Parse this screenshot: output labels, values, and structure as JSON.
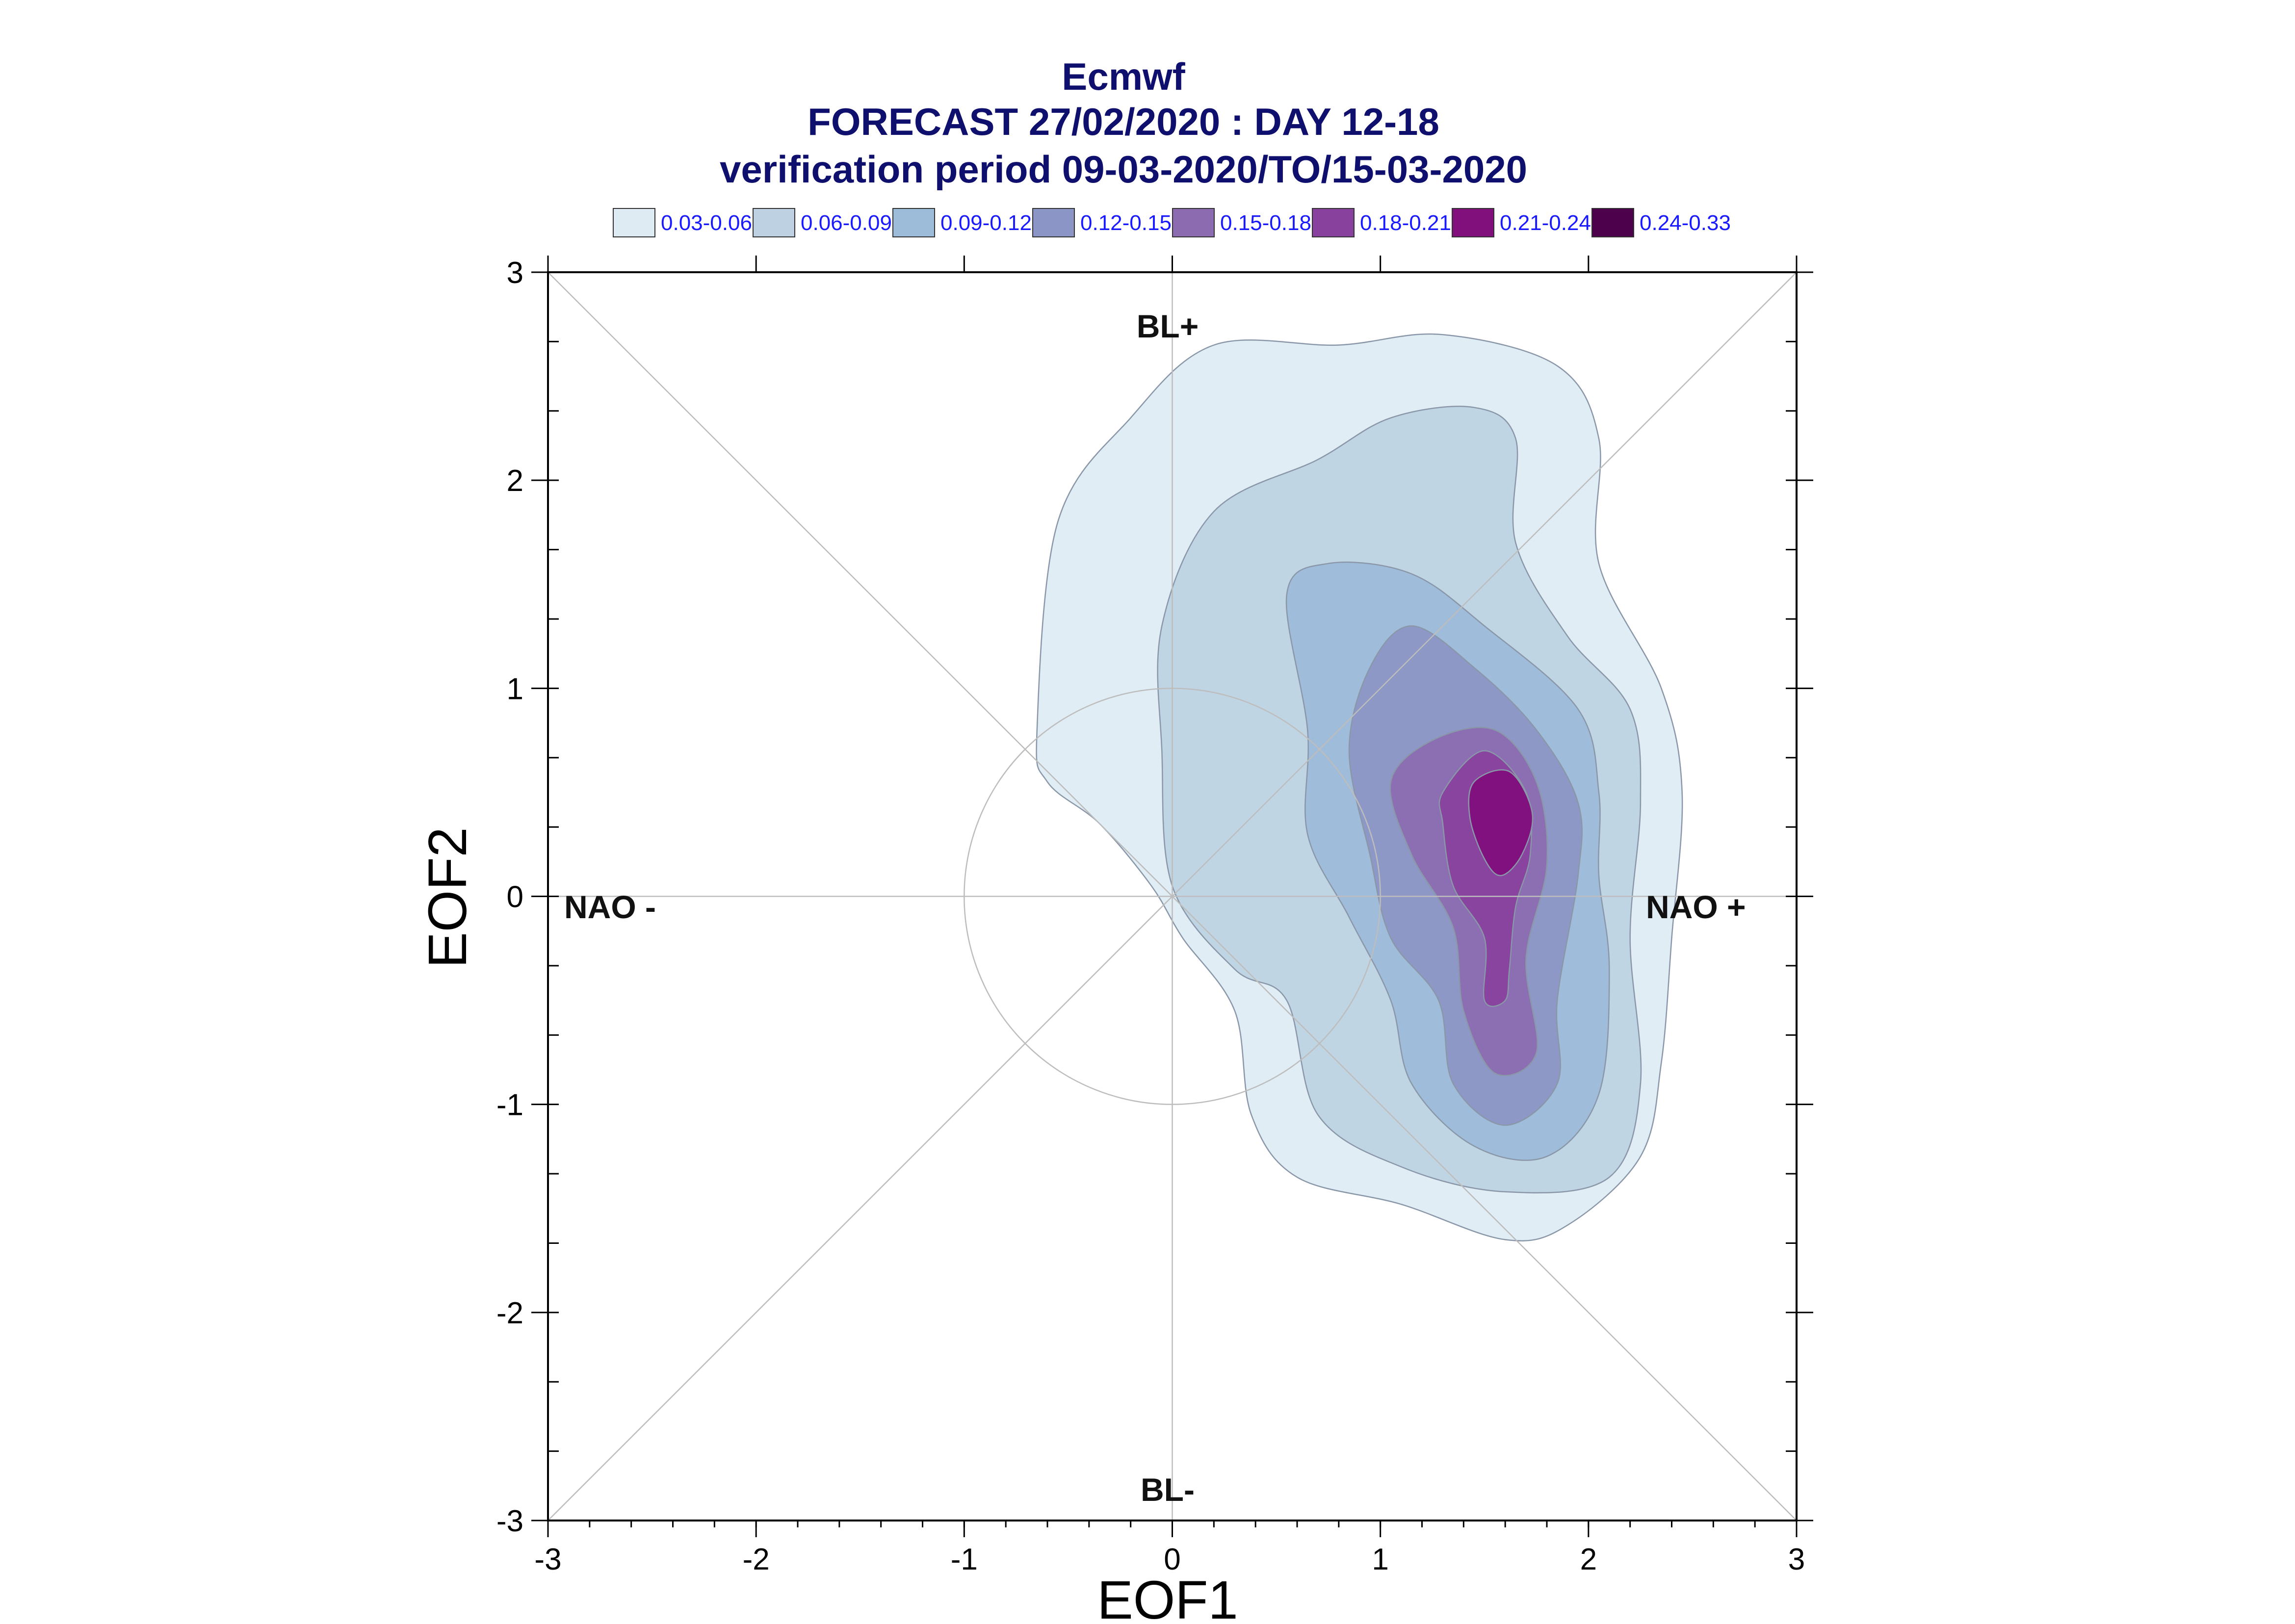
{
  "chart_data": {
    "type": "contour",
    "title_lines": [
      "Ecmwf",
      "FORECAST 27/02/2020 : DAY 12-18",
      "verification period 09-03-2020/TO/15-03-2020"
    ],
    "xlabel": "EOF1",
    "ylabel": "EOF2",
    "xlim": [
      -3,
      3
    ],
    "ylim": [
      -3,
      3
    ],
    "xticks": [
      "-3",
      "-2",
      "-1",
      "0",
      "1",
      "2",
      "3"
    ],
    "yticks": [
      "3",
      "2",
      "1",
      "0",
      "-1",
      "-2",
      "-3"
    ],
    "regime_labels": {
      "top": "BL+",
      "bottom": "BL-",
      "left": "NAO -",
      "right": "NAO +"
    },
    "reference_circle_radius": 1,
    "legend": [
      {
        "label": "0.03-0.06",
        "color": "#deebf3"
      },
      {
        "label": "0.06-0.09",
        "color": "#bdd1e2"
      },
      {
        "label": "0.09-0.12",
        "color": "#9dbcd9"
      },
      {
        "label": "0.12-0.15",
        "color": "#8c96c6"
      },
      {
        "label": "0.15-0.18",
        "color": "#8c6bb1"
      },
      {
        "label": "0.18-0.21",
        "color": "#88419d"
      },
      {
        "label": "0.21-0.24",
        "color": "#810f7c"
      },
      {
        "label": "0.24-0.33",
        "color": "#4d004b"
      }
    ],
    "contours": [
      {
        "level": "0.03-0.06",
        "points": [
          [
            -0.65,
            0.8
          ],
          [
            -0.55,
            1.8
          ],
          [
            -0.2,
            2.3
          ],
          [
            0.2,
            2.65
          ],
          [
            0.8,
            2.65
          ],
          [
            1.3,
            2.7
          ],
          [
            1.85,
            2.55
          ],
          [
            2.05,
            2.2
          ],
          [
            2.05,
            1.6
          ],
          [
            2.35,
            1.0
          ],
          [
            2.45,
            0.5
          ],
          [
            2.4,
            -0.2
          ],
          [
            2.35,
            -0.8
          ],
          [
            2.25,
            -1.25
          ],
          [
            1.9,
            -1.58
          ],
          [
            1.6,
            -1.65
          ],
          [
            1.1,
            -1.48
          ],
          [
            0.6,
            -1.35
          ],
          [
            0.38,
            -1.05
          ],
          [
            0.3,
            -0.55
          ],
          [
            0.05,
            -0.2
          ],
          [
            -0.1,
            0.05
          ],
          [
            -0.35,
            0.35
          ],
          [
            -0.6,
            0.55
          ]
        ]
      },
      {
        "level": "0.06-0.09",
        "points": [
          [
            -0.05,
            1.3
          ],
          [
            0.2,
            1.85
          ],
          [
            0.7,
            2.1
          ],
          [
            1.05,
            2.3
          ],
          [
            1.45,
            2.35
          ],
          [
            1.65,
            2.2
          ],
          [
            1.65,
            1.7
          ],
          [
            1.9,
            1.25
          ],
          [
            2.2,
            0.9
          ],
          [
            2.25,
            0.45
          ],
          [
            2.2,
            -0.2
          ],
          [
            2.25,
            -0.9
          ],
          [
            2.1,
            -1.35
          ],
          [
            1.6,
            -1.42
          ],
          [
            1.1,
            -1.3
          ],
          [
            0.7,
            -1.05
          ],
          [
            0.55,
            -0.5
          ],
          [
            0.3,
            -0.35
          ],
          [
            0.0,
            0.05
          ],
          [
            -0.05,
            0.7
          ]
        ]
      },
      {
        "level": "0.09-0.12",
        "points": [
          [
            0.55,
            1.45
          ],
          [
            0.75,
            1.6
          ],
          [
            1.15,
            1.55
          ],
          [
            1.5,
            1.3
          ],
          [
            1.95,
            0.9
          ],
          [
            2.05,
            0.5
          ],
          [
            2.05,
            0.1
          ],
          [
            2.1,
            -0.35
          ],
          [
            2.05,
            -0.95
          ],
          [
            1.8,
            -1.25
          ],
          [
            1.45,
            -1.2
          ],
          [
            1.15,
            -0.9
          ],
          [
            1.05,
            -0.5
          ],
          [
            0.85,
            -0.1
          ],
          [
            0.65,
            0.3
          ],
          [
            0.65,
            0.8
          ]
        ]
      },
      {
        "level": "0.12-0.15",
        "points": [
          [
            0.95,
            1.1
          ],
          [
            1.15,
            1.3
          ],
          [
            1.45,
            1.1
          ],
          [
            1.75,
            0.8
          ],
          [
            1.95,
            0.45
          ],
          [
            1.95,
            0.1
          ],
          [
            1.85,
            -0.5
          ],
          [
            1.85,
            -0.9
          ],
          [
            1.6,
            -1.1
          ],
          [
            1.35,
            -0.9
          ],
          [
            1.28,
            -0.5
          ],
          [
            1.05,
            -0.2
          ],
          [
            0.95,
            0.2
          ],
          [
            0.85,
            0.7
          ]
        ]
      },
      {
        "level": "0.15-0.18",
        "points": [
          [
            1.05,
            0.55
          ],
          [
            1.25,
            0.75
          ],
          [
            1.55,
            0.8
          ],
          [
            1.75,
            0.55
          ],
          [
            1.8,
            0.15
          ],
          [
            1.7,
            -0.3
          ],
          [
            1.75,
            -0.75
          ],
          [
            1.55,
            -0.85
          ],
          [
            1.4,
            -0.55
          ],
          [
            1.35,
            -0.15
          ],
          [
            1.15,
            0.2
          ]
        ]
      },
      {
        "level": "0.18-0.21",
        "points": [
          [
            1.3,
            0.5
          ],
          [
            1.5,
            0.7
          ],
          [
            1.7,
            0.5
          ],
          [
            1.72,
            0.2
          ],
          [
            1.65,
            -0.05
          ],
          [
            1.62,
            -0.35
          ],
          [
            1.6,
            -0.5
          ],
          [
            1.5,
            -0.5
          ],
          [
            1.5,
            -0.2
          ],
          [
            1.35,
            0.05
          ],
          [
            1.3,
            0.35
          ]
        ]
      },
      {
        "level": "0.21-0.24",
        "points": [
          [
            1.45,
            0.55
          ],
          [
            1.62,
            0.6
          ],
          [
            1.73,
            0.4
          ],
          [
            1.68,
            0.2
          ],
          [
            1.58,
            0.1
          ],
          [
            1.5,
            0.18
          ],
          [
            1.43,
            0.38
          ]
        ]
      }
    ]
  }
}
